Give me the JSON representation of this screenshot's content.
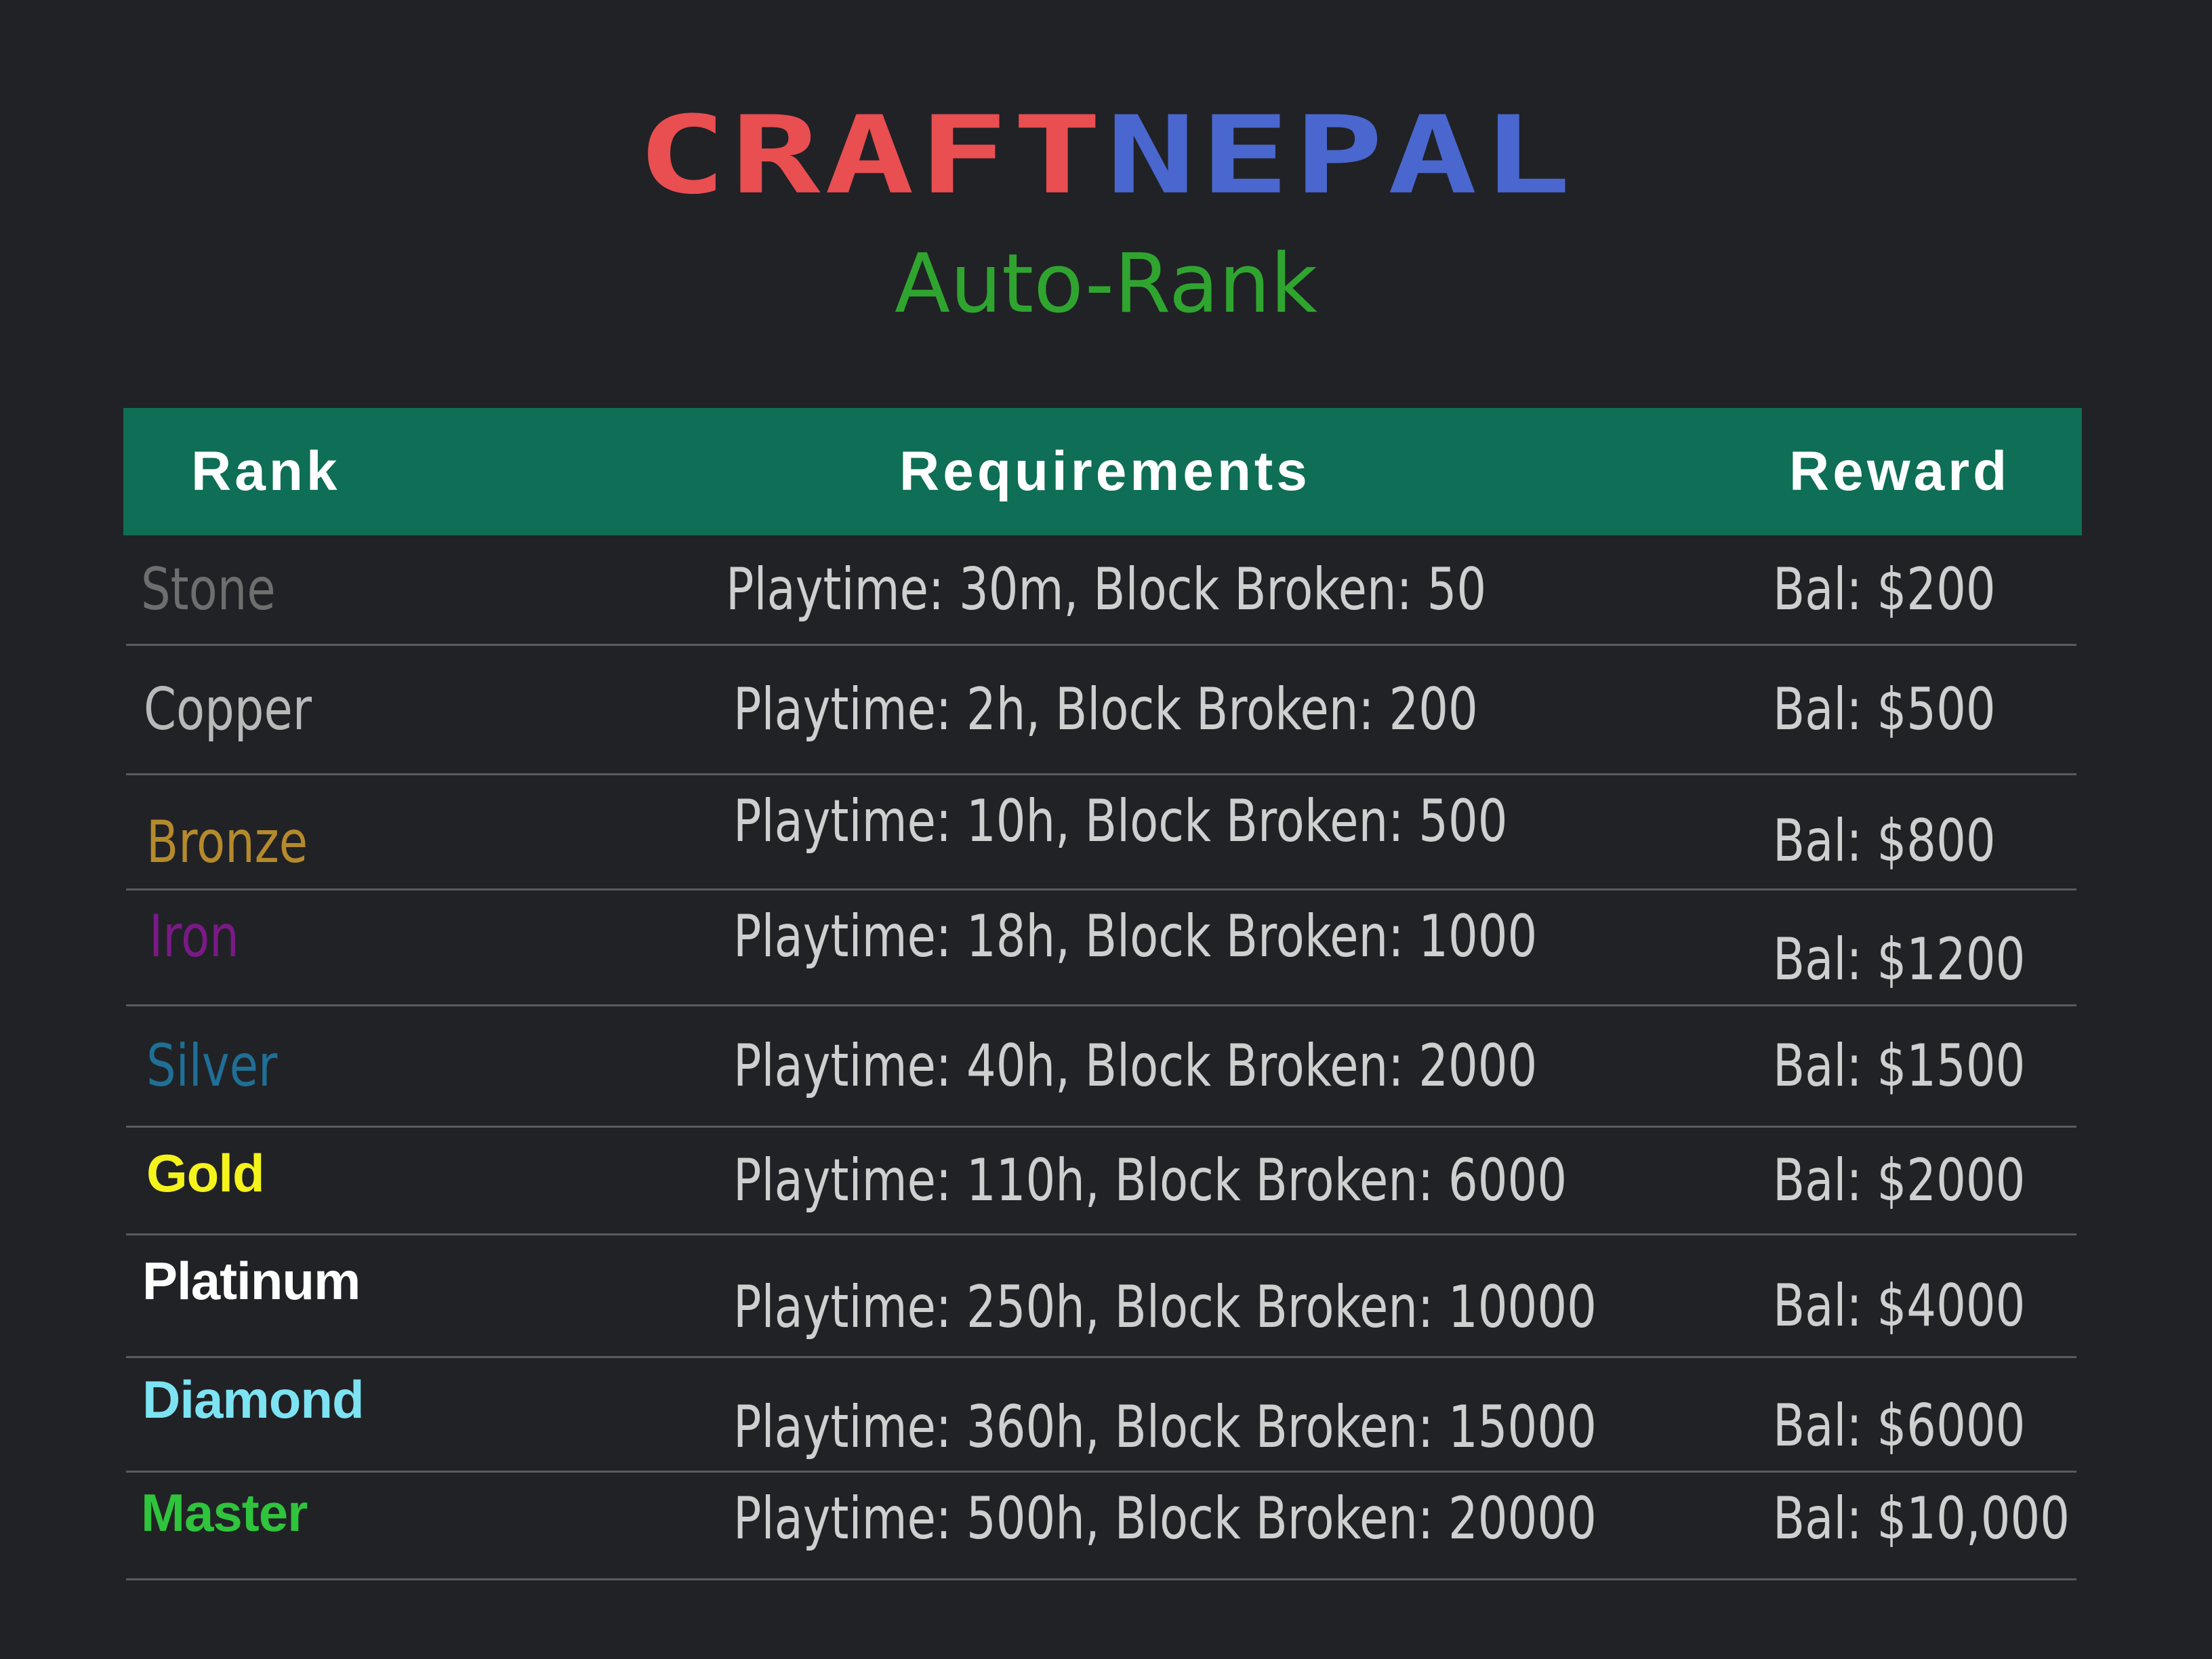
{
  "logo": {
    "part_a": "CRAFT",
    "part_b": "NEPAL",
    "part_a_color": "#e94e51",
    "part_b_color": "#4a67cf"
  },
  "subtitle": "Auto-Rank",
  "table": {
    "headers": {
      "rank": "Rank",
      "requirements": "Requirements",
      "reward": "Reward"
    },
    "header_color": "#0e6e56",
    "rows": [
      {
        "rank": "Stone",
        "rank_color": "#6e6e6e",
        "requirements": "Playtime: 30m, Block Broken: 50",
        "reward": "Bal: $200"
      },
      {
        "rank": "Copper",
        "rank_color": "#b9b9b9",
        "requirements": "Playtime: 2h, Block Broken: 200",
        "reward": "Bal: $500"
      },
      {
        "rank": "Bronze",
        "rank_color": "#b58a2c",
        "requirements": "Playtime: 10h, Block Broken: 500",
        "reward": "Bal: $800"
      },
      {
        "rank": "Iron",
        "rank_color": "#7a1a86",
        "requirements": "Playtime: 18h, Block Broken: 1000",
        "reward": "Bal: $1200"
      },
      {
        "rank": "Silver",
        "rank_color": "#1f6f96",
        "requirements": "Playtime: 40h, Block Broken: 2000",
        "reward": "Bal: $1500"
      },
      {
        "rank": "Gold",
        "rank_color": "#f4f31c",
        "requirements": "Playtime: 110h, Block Broken: 6000",
        "reward": "Bal: $2000"
      },
      {
        "rank": "Platinum",
        "rank_color": "#ffffff",
        "requirements": "Playtime: 250h, Block Broken: 10000",
        "reward": "Bal: $4000"
      },
      {
        "rank": "Diamond",
        "rank_color": "#7de3f2",
        "requirements": "Playtime: 360h, Block Broken: 15000",
        "reward": "Bal: $6000"
      },
      {
        "rank": "Master",
        "rank_color": "#2fc43c",
        "requirements": "Playtime: 500h, Block Broken: 20000",
        "reward": "Bal: $10,000"
      }
    ]
  }
}
